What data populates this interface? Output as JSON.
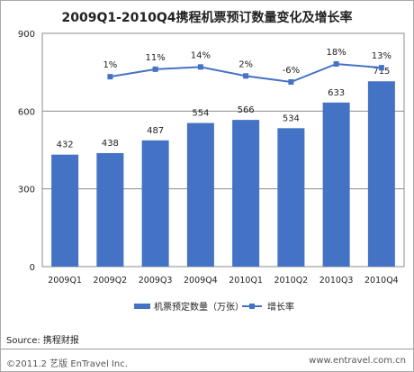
{
  "chart_data": {
    "type": "bar",
    "title": "2009Q1-2010Q4携程机票预订数量变化及增长率",
    "categories": [
      "2009Q1",
      "2009Q2",
      "2009Q3",
      "2009Q4",
      "2010Q1",
      "2010Q2",
      "2010Q3",
      "2010Q4"
    ],
    "series": [
      {
        "name": "机票预定数量（万张）",
        "type": "bar",
        "values": [
          432,
          438,
          487,
          554,
          566,
          534,
          633,
          715
        ],
        "color": "#4472c4"
      },
      {
        "name": "增长率",
        "type": "line",
        "values": [
          null,
          1,
          11,
          14,
          2,
          -6,
          18,
          13
        ],
        "labels": [
          "",
          "1%",
          "11%",
          "14%",
          "2%",
          "-6%",
          "18%",
          "13%"
        ],
        "color": "#4472c4"
      }
    ],
    "ylim": [
      0,
      900
    ],
    "yticks": [
      0,
      300,
      600,
      900
    ],
    "grid": true,
    "legend": "bottom"
  },
  "footer": {
    "source": "Source:  携程财报",
    "copyright": "©2011.2 艺版 EnTravel Inc.",
    "url": "www.entravel.com.cn"
  }
}
